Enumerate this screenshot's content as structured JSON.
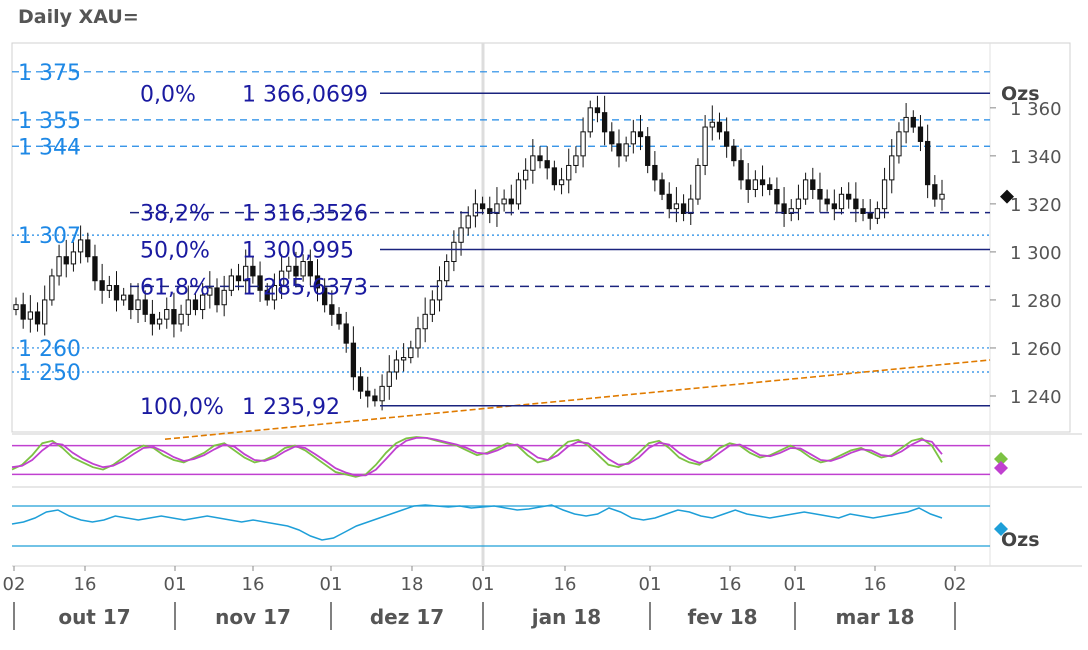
{
  "title": "Daily XAU=",
  "unit_label": "Ozs",
  "colors": {
    "candle": "#111111",
    "fib_line": "#1a237e",
    "level_blue": "#1e88e5",
    "trend": "#e07b00",
    "stoch_k": "#7cc243",
    "stoch_d": "#c040d0",
    "momentum": "#1e9fd8",
    "axis_text": "#555555",
    "fib_text": "#1a1aa0",
    "left_label": "#1e88e5"
  },
  "chart_data": [
    {
      "type": "candlestick",
      "ylim": [
        1225,
        1387
      ],
      "y_ticks": [
        "1 360",
        "1 340",
        "1 320",
        "1 300",
        "1 280",
        "1 260",
        "1 240"
      ],
      "y_tick_values": [
        1360,
        1340,
        1320,
        1300,
        1280,
        1260,
        1240
      ],
      "x_day_ticks": [
        "02",
        "16",
        "01",
        "16",
        "01",
        "18",
        "01",
        "16",
        "01",
        "16",
        "01",
        "16",
        "02"
      ],
      "x_month_labels": [
        "out 17",
        "nov 17",
        "dez 17",
        "jan 18",
        "fev 18",
        "mar 18"
      ],
      "close_series": [
        1278,
        1272,
        1275,
        1270,
        1280,
        1290,
        1298,
        1295,
        1300,
        1305,
        1298,
        1288,
        1284,
        1286,
        1280,
        1282,
        1276,
        1280,
        1274,
        1270,
        1272,
        1276,
        1270,
        1274,
        1280,
        1276,
        1282,
        1285,
        1278,
        1284,
        1290,
        1288,
        1294,
        1290,
        1284,
        1280,
        1286,
        1292,
        1294,
        1290,
        1296,
        1290,
        1285,
        1278,
        1274,
        1270,
        1262,
        1248,
        1242,
        1240,
        1238,
        1244,
        1250,
        1255,
        1256,
        1260,
        1268,
        1274,
        1280,
        1288,
        1296,
        1304,
        1310,
        1315,
        1320,
        1318,
        1316,
        1320,
        1322,
        1320,
        1330,
        1334,
        1340,
        1338,
        1335,
        1328,
        1330,
        1336,
        1340,
        1350,
        1360,
        1358,
        1350,
        1345,
        1340,
        1345,
        1350,
        1348,
        1336,
        1330,
        1324,
        1318,
        1320,
        1316,
        1322,
        1336,
        1352,
        1354,
        1350,
        1344,
        1338,
        1330,
        1326,
        1330,
        1328,
        1326,
        1320,
        1316,
        1318,
        1322,
        1330,
        1326,
        1322,
        1320,
        1318,
        1324,
        1322,
        1318,
        1316,
        1314,
        1318,
        1330,
        1340,
        1350,
        1356,
        1352,
        1346,
        1328,
        1322,
        1324
      ],
      "fib_levels": [
        {
          "pct": "0,0%",
          "value": "1 366,0699",
          "y": 1366.07
        },
        {
          "pct": "38,2%",
          "value": "1 316,3526",
          "y": 1316.35
        },
        {
          "pct": "50,0%",
          "value": "1 300,995",
          "y": 1301.0
        },
        {
          "pct": "61,8%",
          "value": "1 285,6373",
          "y": 1285.64
        },
        {
          "pct": "100,0%",
          "value": "1 235,92",
          "y": 1235.92
        }
      ],
      "levels": [
        {
          "label": "1 375",
          "y": 1375,
          "style": "dash"
        },
        {
          "label": "1 355",
          "y": 1355,
          "style": "dash"
        },
        {
          "label": "1 344",
          "y": 1344,
          "style": "dash"
        },
        {
          "label": "1 307",
          "y": 1307,
          "style": "dot"
        },
        {
          "label": "1 260",
          "y": 1260,
          "style": "dot"
        },
        {
          "label": "1 250",
          "y": 1250,
          "style": "dot"
        }
      ],
      "trendline": {
        "from": 1222,
        "to": 1255
      }
    },
    {
      "type": "line",
      "name": "stochastic",
      "band": [
        80,
        20
      ],
      "k": [
        30,
        40,
        60,
        85,
        90,
        75,
        55,
        45,
        35,
        30,
        40,
        55,
        70,
        80,
        75,
        60,
        50,
        45,
        55,
        65,
        80,
        85,
        70,
        55,
        45,
        50,
        60,
        75,
        80,
        70,
        55,
        40,
        25,
        20,
        15,
        20,
        40,
        65,
        85,
        95,
        98,
        96,
        90,
        85,
        80,
        70,
        60,
        65,
        75,
        85,
        80,
        60,
        45,
        50,
        70,
        88,
        92,
        80,
        60,
        40,
        35,
        45,
        65,
        85,
        90,
        75,
        55,
        45,
        40,
        55,
        75,
        85,
        80,
        65,
        55,
        60,
        70,
        80,
        70,
        55,
        45,
        50,
        60,
        70,
        75,
        65,
        55,
        60,
        75,
        90,
        95,
        80,
        45
      ],
      "d": [
        35,
        38,
        50,
        70,
        85,
        82,
        65,
        52,
        42,
        35,
        38,
        48,
        62,
        75,
        77,
        68,
        56,
        48,
        52,
        60,
        72,
        82,
        78,
        62,
        50,
        48,
        55,
        68,
        78,
        75,
        62,
        48,
        33,
        24,
        18,
        18,
        30,
        52,
        75,
        90,
        96,
        96,
        92,
        87,
        82,
        75,
        65,
        63,
        70,
        80,
        82,
        70,
        55,
        50,
        60,
        78,
        88,
        85,
        70,
        52,
        40,
        42,
        55,
        75,
        86,
        82,
        65,
        52,
        44,
        50,
        65,
        80,
        82,
        72,
        60,
        58,
        65,
        75,
        74,
        62,
        50,
        48,
        55,
        65,
        72,
        70,
        60,
        58,
        68,
        82,
        92,
        88,
        62
      ]
    },
    {
      "type": "line",
      "name": "momentum",
      "band": [
        1,
        -1
      ],
      "values": [
        0.1,
        0.2,
        0.4,
        0.7,
        0.8,
        0.5,
        0.3,
        0.2,
        0.3,
        0.5,
        0.4,
        0.3,
        0.4,
        0.5,
        0.4,
        0.3,
        0.4,
        0.5,
        0.4,
        0.3,
        0.2,
        0.3,
        0.2,
        0.1,
        0,
        -0.2,
        -0.5,
        -0.7,
        -0.6,
        -0.3,
        0,
        0.2,
        0.4,
        0.6,
        0.8,
        1.0,
        1.05,
        1.0,
        0.95,
        1.0,
        0.9,
        0.95,
        1.0,
        0.9,
        0.8,
        0.85,
        0.95,
        1.05,
        0.8,
        0.6,
        0.5,
        0.6,
        0.9,
        0.7,
        0.4,
        0.3,
        0.4,
        0.6,
        0.8,
        0.7,
        0.5,
        0.4,
        0.6,
        0.8,
        0.6,
        0.5,
        0.4,
        0.5,
        0.6,
        0.7,
        0.6,
        0.5,
        0.4,
        0.6,
        0.5,
        0.4,
        0.5,
        0.6,
        0.7,
        0.9,
        0.6,
        0.4
      ]
    }
  ]
}
